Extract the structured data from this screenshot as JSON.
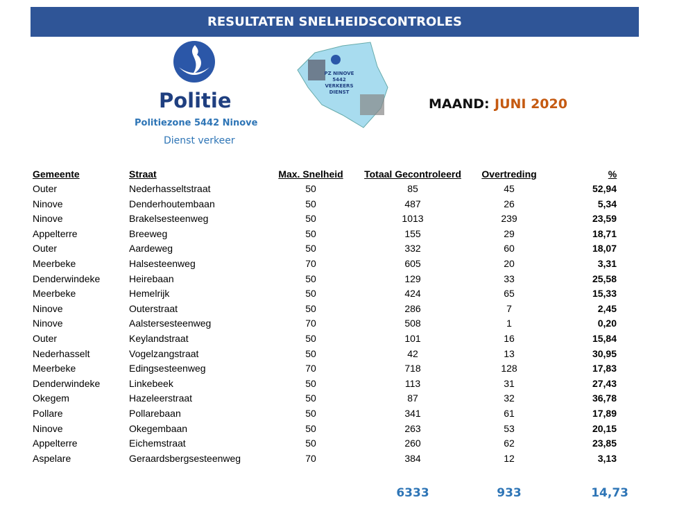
{
  "header": {
    "title": "RESULTATEN SNELHEIDSCONTROLES"
  },
  "logo": {
    "name": "Politie",
    "zone": "Politiezone 5442 Ninove",
    "service": "Dienst verkeer"
  },
  "map_label": [
    "PZ NINOVE",
    "5442",
    "VERKEERS",
    "DIENST"
  ],
  "month": {
    "label": "MAAND:",
    "value": "JUNI 2020"
  },
  "table": {
    "headers": [
      "Gemeente",
      "Straat",
      "Max. Snelheid",
      "Totaal Gecontroleerd",
      "Overtreding",
      "%"
    ],
    "rows": [
      [
        "Outer",
        "Nederhasseltstraat",
        "50",
        "85",
        "45",
        "52,94"
      ],
      [
        "Ninove",
        "Denderhoutembaan",
        "50",
        "487",
        "26",
        "5,34"
      ],
      [
        "Ninove",
        "Brakelsesteenweg",
        "50",
        "1013",
        "239",
        "23,59"
      ],
      [
        "Appelterre",
        "Breeweg",
        "50",
        "155",
        "29",
        "18,71"
      ],
      [
        "Outer",
        "Aardeweg",
        "50",
        "332",
        "60",
        "18,07"
      ],
      [
        "Meerbeke",
        "Halsesteenweg",
        "70",
        "605",
        "20",
        "3,31"
      ],
      [
        "Denderwindeke",
        "Heirebaan",
        "50",
        "129",
        "33",
        "25,58"
      ],
      [
        "Meerbeke",
        "Hemelrijk",
        "50",
        "424",
        "65",
        "15,33"
      ],
      [
        "Ninove",
        "Outerstraat",
        "50",
        "286",
        "7",
        "2,45"
      ],
      [
        "Ninove",
        "Aalstersesteenweg",
        "70",
        "508",
        "1",
        "0,20"
      ],
      [
        "Outer",
        "Keylandstraat",
        "50",
        "101",
        "16",
        "15,84"
      ],
      [
        "Nederhasselt",
        "Vogelzangstraat",
        "50",
        "42",
        "13",
        "30,95"
      ],
      [
        "Meerbeke",
        "Edingsesteenweg",
        "70",
        "718",
        "128",
        "17,83"
      ],
      [
        "Denderwindeke",
        "Linkebeek",
        "50",
        "113",
        "31",
        "27,43"
      ],
      [
        "Okegem",
        "Hazeleerstraat",
        "50",
        "87",
        "32",
        "36,78"
      ],
      [
        "Pollare",
        "Pollarebaan",
        "50",
        "341",
        "61",
        "17,89"
      ],
      [
        "Ninove",
        "Okegembaan",
        "50",
        "263",
        "53",
        "20,15"
      ],
      [
        "Appelterre",
        "Eichemstraat",
        "50",
        "260",
        "62",
        "23,85"
      ],
      [
        "Aspelare",
        "Geraardsbergsesteenweg",
        "70",
        "384",
        "12",
        "3,13"
      ]
    ],
    "totals": [
      "6333",
      "933",
      "14,73"
    ]
  }
}
